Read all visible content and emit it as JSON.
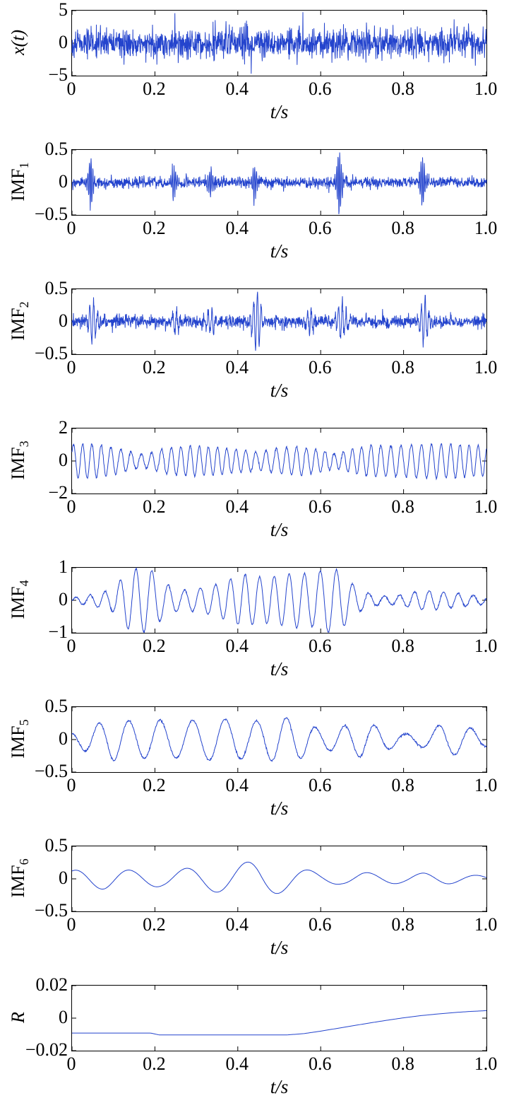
{
  "figure": {
    "xlabel": "t/s",
    "line_color": "#2444cd",
    "axis_color": "#000000",
    "xlim": [
      0,
      1
    ],
    "xticks": [
      {
        "value": 0,
        "label": "0"
      },
      {
        "value": 0.2,
        "label": "0.2"
      },
      {
        "value": 0.4,
        "label": "0.4"
      },
      {
        "value": 0.6,
        "label": "0.6"
      },
      {
        "value": 0.8,
        "label": "0.8"
      },
      {
        "value": 1.0,
        "label": "1.0"
      }
    ]
  },
  "chart_data": [
    {
      "type": "line",
      "id": "xt",
      "ylabel": {
        "base": "x(t)",
        "sub": "",
        "italic": true
      },
      "ylim": [
        -5,
        5
      ],
      "yticks": [
        {
          "value": 5,
          "label": "5"
        },
        {
          "value": 0,
          "label": "0"
        },
        {
          "value": -5,
          "label": "−5"
        }
      ],
      "n_points": 1500,
      "seed": 42,
      "components": [
        {
          "kind": "noise",
          "amp": 1.15
        },
        {
          "kind": "spikes",
          "at": [
            0.248,
            0.432,
            0.557
          ],
          "values": [
            4.6,
            -4.7,
            4.75
          ]
        }
      ]
    },
    {
      "type": "line",
      "id": "imf1",
      "ylabel": {
        "base": "IMF",
        "sub": "1",
        "italic": false
      },
      "ylim": [
        -0.5,
        0.5
      ],
      "yticks": [
        {
          "value": 0.5,
          "label": "0.5"
        },
        {
          "value": 0,
          "label": "0"
        },
        {
          "value": -0.5,
          "label": "−0.5"
        }
      ],
      "n_points": 1500,
      "seed": 7,
      "components": [
        {
          "kind": "noise",
          "amp": 0.045
        },
        {
          "kind": "bursts",
          "centers": [
            0.045,
            0.245,
            0.335,
            0.44,
            0.645,
            0.845
          ],
          "amps": [
            0.42,
            0.32,
            0.2,
            0.28,
            0.5,
            0.42
          ],
          "width": 0.007,
          "freq": 250
        }
      ]
    },
    {
      "type": "line",
      "id": "imf2",
      "ylabel": {
        "base": "IMF",
        "sub": "2",
        "italic": false
      },
      "ylim": [
        -0.5,
        0.5
      ],
      "yticks": [
        {
          "value": 0.5,
          "label": "0.5"
        },
        {
          "value": 0,
          "label": "0"
        },
        {
          "value": -0.5,
          "label": "−0.5"
        }
      ],
      "n_points": 1500,
      "seed": 19,
      "components": [
        {
          "kind": "noise",
          "amp": 0.05
        },
        {
          "kind": "bursts",
          "centers": [
            0.05,
            0.25,
            0.335,
            0.445,
            0.575,
            0.65,
            0.85
          ],
          "amps": [
            0.3,
            0.15,
            0.18,
            0.45,
            0.18,
            0.3,
            0.36
          ],
          "width": 0.012,
          "freq": 110
        }
      ]
    },
    {
      "type": "line",
      "id": "imf3",
      "ylabel": {
        "base": "IMF",
        "sub": "3",
        "italic": false
      },
      "ylim": [
        -2,
        2
      ],
      "yticks": [
        {
          "value": 2,
          "label": "2"
        },
        {
          "value": 0,
          "label": "0"
        },
        {
          "value": -2,
          "label": "−2"
        }
      ],
      "n_points": 1200,
      "seed": 3,
      "components": [
        {
          "kind": "env_sine",
          "freq": 43,
          "amp": 0.85,
          "phase": 0.5,
          "fm": {
            "freq": 3.1,
            "depth": 0.9
          },
          "env": [
            [
              0,
              1.2
            ],
            [
              0.05,
              1.25
            ],
            [
              0.1,
              1.0
            ],
            [
              0.15,
              0.6
            ],
            [
              0.18,
              0.5
            ],
            [
              0.22,
              0.9
            ],
            [
              0.28,
              1.1
            ],
            [
              0.33,
              1.05
            ],
            [
              0.4,
              0.85
            ],
            [
              0.45,
              0.65
            ],
            [
              0.5,
              0.95
            ],
            [
              0.55,
              1.05
            ],
            [
              0.6,
              0.8
            ],
            [
              0.64,
              0.55
            ],
            [
              0.68,
              0.9
            ],
            [
              0.72,
              1.15
            ],
            [
              0.78,
              1.1
            ],
            [
              0.84,
              1.2
            ],
            [
              0.9,
              1.25
            ],
            [
              0.95,
              1.15
            ],
            [
              1,
              1.1
            ]
          ]
        },
        {
          "kind": "noise",
          "amp": 0.04
        }
      ]
    },
    {
      "type": "line",
      "id": "imf4",
      "ylabel": {
        "base": "IMF",
        "sub": "4",
        "italic": false
      },
      "ylim": [
        -1,
        1
      ],
      "yticks": [
        {
          "value": 1,
          "label": "1"
        },
        {
          "value": 0,
          "label": "0"
        },
        {
          "value": -1,
          "label": "−1"
        }
      ],
      "n_points": 1200,
      "seed": 11,
      "components": [
        {
          "kind": "env_sine",
          "freq": 27,
          "amp": 1,
          "phase": 0,
          "fm": {
            "freq": 2.3,
            "depth": 0.7
          },
          "env": [
            [
              0,
              0.08
            ],
            [
              0.06,
              0.2
            ],
            [
              0.1,
              0.35
            ],
            [
              0.13,
              0.85
            ],
            [
              0.16,
              1.0
            ],
            [
              0.19,
              0.95
            ],
            [
              0.22,
              0.55
            ],
            [
              0.26,
              0.3
            ],
            [
              0.3,
              0.35
            ],
            [
              0.34,
              0.45
            ],
            [
              0.38,
              0.65
            ],
            [
              0.42,
              0.8
            ],
            [
              0.46,
              0.7
            ],
            [
              0.5,
              0.75
            ],
            [
              0.54,
              0.85
            ],
            [
              0.58,
              0.8
            ],
            [
              0.62,
              1.0
            ],
            [
              0.65,
              0.9
            ],
            [
              0.68,
              0.45
            ],
            [
              0.72,
              0.2
            ],
            [
              0.76,
              0.12
            ],
            [
              0.8,
              0.18
            ],
            [
              0.84,
              0.3
            ],
            [
              0.88,
              0.28
            ],
            [
              0.92,
              0.22
            ],
            [
              0.96,
              0.18
            ],
            [
              1,
              0.12
            ]
          ]
        },
        {
          "kind": "noise",
          "amp": 0.015
        }
      ]
    },
    {
      "type": "line",
      "id": "imf5",
      "ylabel": {
        "base": "IMF",
        "sub": "5",
        "italic": false
      },
      "ylim": [
        -0.5,
        0.5
      ],
      "yticks": [
        {
          "value": 0.5,
          "label": "0.5"
        },
        {
          "value": 0,
          "label": "0"
        },
        {
          "value": -0.5,
          "label": "−0.5"
        }
      ],
      "n_points": 1000,
      "seed": 23,
      "components": [
        {
          "kind": "env_sine",
          "freq": 13.5,
          "amp": 1,
          "phase": 2.0,
          "fm": {
            "freq": 1.7,
            "depth": 0.5
          },
          "env": [
            [
              0,
              0.1
            ],
            [
              0.05,
              0.22
            ],
            [
              0.1,
              0.32
            ],
            [
              0.15,
              0.28
            ],
            [
              0.2,
              0.3
            ],
            [
              0.25,
              0.28
            ],
            [
              0.3,
              0.3
            ],
            [
              0.35,
              0.33
            ],
            [
              0.4,
              0.3
            ],
            [
              0.45,
              0.28
            ],
            [
              0.5,
              0.35
            ],
            [
              0.55,
              0.3
            ],
            [
              0.6,
              0.15
            ],
            [
              0.65,
              0.2
            ],
            [
              0.7,
              0.27
            ],
            [
              0.75,
              0.18
            ],
            [
              0.8,
              0.08
            ],
            [
              0.85,
              0.12
            ],
            [
              0.9,
              0.26
            ],
            [
              0.95,
              0.2
            ],
            [
              1,
              0.1
            ]
          ]
        },
        {
          "kind": "noise",
          "amp": 0.008
        }
      ]
    },
    {
      "type": "line",
      "id": "imf6",
      "ylabel": {
        "base": "IMF",
        "sub": "6",
        "italic": false
      },
      "ylim": [
        -0.5,
        0.5
      ],
      "yticks": [
        {
          "value": 0.5,
          "label": "0.5"
        },
        {
          "value": 0,
          "label": "0"
        },
        {
          "value": -0.5,
          "label": "−0.5"
        }
      ],
      "n_points": 1000,
      "seed": 31,
      "components": [
        {
          "kind": "env_sine",
          "freq": 7.2,
          "amp": 1,
          "phase": 1.2,
          "fm": {
            "freq": 1.1,
            "depth": 0.5
          },
          "env": [
            [
              0,
              0.13
            ],
            [
              0.08,
              0.16
            ],
            [
              0.15,
              0.13
            ],
            [
              0.22,
              0.12
            ],
            [
              0.3,
              0.18
            ],
            [
              0.38,
              0.22
            ],
            [
              0.45,
              0.28
            ],
            [
              0.5,
              0.22
            ],
            [
              0.55,
              0.16
            ],
            [
              0.6,
              0.1
            ],
            [
              0.65,
              0.08
            ],
            [
              0.7,
              0.1
            ],
            [
              0.75,
              0.08
            ],
            [
              0.8,
              0.07
            ],
            [
              0.85,
              0.09
            ],
            [
              0.9,
              0.08
            ],
            [
              0.95,
              0.06
            ],
            [
              1,
              0.05
            ]
          ]
        }
      ]
    },
    {
      "type": "line",
      "id": "r",
      "ylabel": {
        "base": "R",
        "sub": "",
        "italic": true
      },
      "ylim": [
        -0.02,
        0.02
      ],
      "yticks": [
        {
          "value": 0.02,
          "label": "0.02"
        },
        {
          "value": 0,
          "label": "0"
        },
        {
          "value": -0.02,
          "label": "−0.02"
        }
      ],
      "n_points": 400,
      "seed": 1,
      "components": [
        {
          "kind": "trend",
          "points": [
            [
              0,
              -0.0092
            ],
            [
              0.19,
              -0.0092
            ],
            [
              0.21,
              -0.0103
            ],
            [
              0.52,
              -0.0103
            ],
            [
              0.56,
              -0.0095
            ],
            [
              0.6,
              -0.008
            ],
            [
              0.64,
              -0.0063
            ],
            [
              0.68,
              -0.0046
            ],
            [
              0.72,
              -0.0029
            ],
            [
              0.76,
              -0.0013
            ],
            [
              0.8,
              0.0002
            ],
            [
              0.84,
              0.0015
            ],
            [
              0.88,
              0.0025
            ],
            [
              0.92,
              0.0034
            ],
            [
              0.96,
              0.0041
            ],
            [
              1,
              0.0046
            ]
          ]
        }
      ]
    }
  ]
}
